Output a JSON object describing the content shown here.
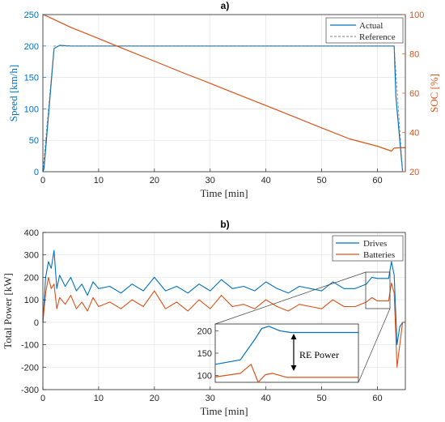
{
  "chart_data": [
    {
      "type": "line",
      "title": "a)",
      "xlabel": "Time [min]",
      "ylabel_left": "Speed [km/h]",
      "ylabel_right": "SOC [%]",
      "xlim": [
        0,
        65
      ],
      "ylim_left": [
        0,
        250
      ],
      "ylim_right": [
        20,
        100
      ],
      "xticks": [
        0,
        10,
        20,
        30,
        40,
        50,
        60
      ],
      "yticks_left": [
        0,
        50,
        100,
        150,
        200,
        250
      ],
      "yticks_right": [
        20,
        40,
        60,
        80,
        100
      ],
      "legend_position": "top-right",
      "series": [
        {
          "name": "Actual",
          "axis": "left",
          "color": "#0072BD",
          "style": "solid",
          "x": [
            0,
            0.2,
            2,
            3,
            5,
            10,
            20,
            30,
            40,
            50,
            55,
            60,
            63,
            63.3,
            64.5
          ],
          "y": [
            0,
            5,
            196,
            201,
            200,
            200,
            200,
            200,
            200,
            200,
            200,
            200,
            200,
            120,
            0
          ]
        },
        {
          "name": "Reference",
          "axis": "left",
          "color": "#7f7f7f",
          "style": "dashed",
          "x": [
            0,
            2,
            63,
            64.5
          ],
          "y": [
            0,
            200,
            200,
            0
          ]
        },
        {
          "name": "SOC",
          "axis": "right",
          "color": "#D95319",
          "style": "solid",
          "x": [
            0,
            0.5,
            2,
            5,
            10,
            15,
            20,
            25,
            30,
            35,
            40,
            45,
            50,
            55,
            60,
            62.5,
            63,
            64,
            65
          ],
          "y": [
            100,
            99.5,
            97.5,
            93.5,
            87.8,
            82,
            76.3,
            70.5,
            65,
            59.3,
            53.7,
            48,
            42.3,
            36.7,
            33,
            30.5,
            32,
            32.2,
            32.2
          ]
        }
      ]
    },
    {
      "type": "line",
      "title": "b)",
      "xlabel": "Time [min]",
      "ylabel": "Total Power [kW]",
      "xlim": [
        0,
        65
      ],
      "ylim": [
        -300,
        400
      ],
      "xticks": [
        0,
        10,
        20,
        30,
        40,
        50,
        60
      ],
      "yticks": [
        -300,
        -200,
        -100,
        0,
        100,
        200,
        300,
        400
      ],
      "legend_position": "top-right",
      "series": [
        {
          "name": "Drives",
          "color": "#0072BD",
          "x": [
            0,
            0.5,
            1,
            1.5,
            2,
            2.5,
            3,
            4,
            5,
            6,
            7,
            8,
            9,
            10,
            12,
            14,
            16,
            18,
            20,
            22,
            24,
            26,
            28,
            30,
            32,
            34,
            36,
            38,
            40,
            42,
            44,
            46,
            48,
            50,
            52,
            54,
            56,
            58,
            59,
            60,
            61,
            62,
            62.5,
            63,
            63.5,
            64,
            64.5,
            65
          ],
          "y": [
            0,
            200,
            270,
            240,
            320,
            150,
            210,
            160,
            200,
            140,
            170,
            120,
            180,
            150,
            160,
            130,
            170,
            140,
            200,
            140,
            160,
            130,
            170,
            140,
            190,
            150,
            160,
            140,
            180,
            150,
            130,
            160,
            150,
            140,
            180,
            150,
            150,
            170,
            200,
            195,
            195,
            195,
            270,
            210,
            -100,
            -20,
            0,
            0
          ]
        },
        {
          "name": "Batteries",
          "color": "#D95319",
          "x": [
            0,
            0.5,
            1,
            1.5,
            2,
            2.5,
            3,
            4,
            5,
            6,
            7,
            8,
            9,
            10,
            12,
            14,
            16,
            18,
            20,
            22,
            24,
            26,
            28,
            30,
            32,
            34,
            36,
            38,
            40,
            42,
            44,
            46,
            48,
            50,
            52,
            54,
            56,
            58,
            59,
            60,
            61,
            62,
            62.5,
            63,
            63.5,
            64,
            64.5,
            65
          ],
          "y": [
            0,
            130,
            200,
            150,
            170,
            60,
            110,
            80,
            120,
            60,
            90,
            50,
            110,
            70,
            90,
            60,
            100,
            70,
            140,
            60,
            90,
            50,
            100,
            60,
            120,
            70,
            80,
            60,
            100,
            70,
            50,
            80,
            70,
            60,
            100,
            70,
            70,
            90,
            110,
            95,
            95,
            95,
            175,
            130,
            -200,
            -100,
            0,
            0
          ]
        }
      ],
      "inset": {
        "xlim": [
          58.5,
          62.5
        ],
        "ylim": [
          85,
          215
        ],
        "yticks": [
          100,
          150,
          200
        ],
        "annotation": "RE Power",
        "series": [
          {
            "name": "Drives",
            "x": [
              58.5,
              59.2,
              59.6,
              59.8,
              60.0,
              60.3,
              60.6,
              62.5
            ],
            "y": [
              125,
              135,
              180,
              205,
              210,
              200,
              196,
              196
            ]
          },
          {
            "name": "Batteries",
            "x": [
              58.5,
              59.2,
              59.5,
              59.7,
              59.9,
              60.1,
              60.5,
              62.5
            ],
            "y": [
              97,
              105,
              125,
              85,
              102,
              105,
              96,
              96
            ]
          }
        ]
      }
    }
  ]
}
